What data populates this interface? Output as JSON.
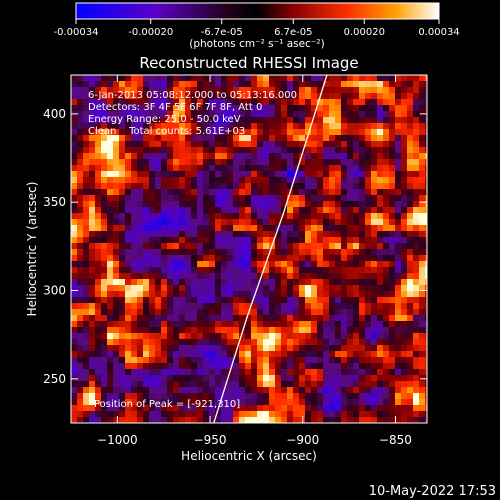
{
  "colorbar": {
    "tick_labels": [
      "-0.00034",
      "-0.00020",
      "-6.7e-05",
      "6.7e-05",
      "0.00020",
      "0.00034"
    ],
    "tick_values": [
      -0.00034,
      -0.0002,
      -6.7e-05,
      6.7e-05,
      0.0002,
      0.00034
    ],
    "range": [
      -0.00034,
      0.00034
    ],
    "units_label": "(photons cm⁻² s⁻¹ asec⁻²)",
    "colors": [
      "#0000ff",
      "#4b00cc",
      "#000000",
      "#800000",
      "#ff3300",
      "#ff9900",
      "#ffffff"
    ]
  },
  "chart_data": {
    "type": "heatmap",
    "title": "Reconstructed RHESSI Image",
    "xlabel": "Heliocentric X (arcsec)",
    "ylabel": "Heliocentric Y (arcsec)",
    "xlim": [
      -1025,
      -833
    ],
    "ylim": [
      225,
      422
    ],
    "x_ticks": [
      -1000,
      -950,
      -900,
      -850
    ],
    "x_tick_labels": [
      "−1000",
      "−950",
      "−900",
      "−850"
    ],
    "y_ticks": [
      250,
      300,
      350,
      400
    ],
    "y_tick_labels": [
      "250",
      "300",
      "350",
      "400"
    ],
    "info_lines": [
      "6-Jan-2013 05:08:12.000 to 05:13:16.000",
      "Detectors: 3F 4F 5F 6F 7F 8F, Att 0",
      "Energy Range: 25.0 - 50.0 keV",
      "Clean    Total counts: 5.61E+03"
    ],
    "peak_label": "Position of Peak = [-921,310]",
    "peak": [
      -921,
      310
    ],
    "limb_curve": [
      [
        -948,
        225
      ],
      [
        -930,
        285
      ],
      [
        -910,
        345
      ],
      [
        -895,
        395
      ],
      [
        -887,
        422
      ]
    ],
    "grid": false
  },
  "footer": {
    "timestamp": "10-May-2022 17:53"
  }
}
